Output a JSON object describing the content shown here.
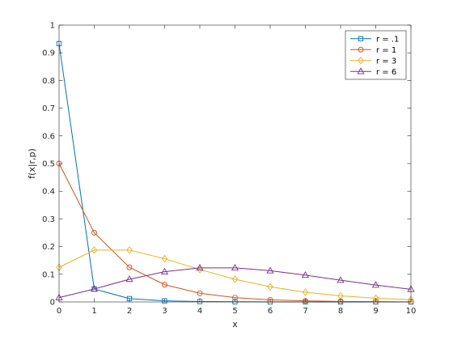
{
  "chart_data": {
    "type": "line",
    "xlabel": "x",
    "ylabel": "f(x|r,p)",
    "xlim": [
      0,
      10
    ],
    "ylim": [
      0,
      1
    ],
    "x_ticks": [
      "0",
      "1",
      "2",
      "3",
      "4",
      "5",
      "6",
      "7",
      "8",
      "9",
      "10"
    ],
    "y_ticks": [
      "0",
      "0.1",
      "0.2",
      "0.3",
      "0.4",
      "0.5",
      "0.6",
      "0.7",
      "0.8",
      "0.9",
      "1"
    ],
    "grid": false,
    "box": true,
    "legend_position": "top-right",
    "series": [
      {
        "name": "r = .1",
        "color": "#0072BD",
        "marker": "square",
        "x": [
          0,
          1,
          2,
          3,
          4,
          5,
          6,
          7,
          8,
          9,
          10
        ],
        "values": [
          0.933,
          0.047,
          0.012,
          0.004,
          0.0015,
          0.0006,
          0.0002,
          0.0001,
          4e-05,
          2e-05,
          1e-05
        ]
      },
      {
        "name": "r = 1",
        "color": "#D95319",
        "marker": "circle",
        "x": [
          0,
          1,
          2,
          3,
          4,
          5,
          6,
          7,
          8,
          9,
          10
        ],
        "values": [
          0.5,
          0.25,
          0.125,
          0.0625,
          0.0313,
          0.0156,
          0.0078,
          0.0039,
          0.002,
          0.001,
          0.0005
        ]
      },
      {
        "name": "r = 3",
        "color": "#EDB120",
        "marker": "diamond",
        "x": [
          0,
          1,
          2,
          3,
          4,
          5,
          6,
          7,
          8,
          9,
          10
        ],
        "values": [
          0.125,
          0.1875,
          0.1875,
          0.1563,
          0.1172,
          0.082,
          0.0547,
          0.0352,
          0.022,
          0.0134,
          0.0081
        ]
      },
      {
        "name": "r = 6",
        "color": "#7E2F8E",
        "marker": "triangle",
        "x": [
          0,
          1,
          2,
          3,
          4,
          5,
          6,
          7,
          8,
          9,
          10
        ],
        "values": [
          0.0156,
          0.0469,
          0.082,
          0.1094,
          0.123,
          0.123,
          0.1128,
          0.0967,
          0.0786,
          0.0611,
          0.0458
        ]
      }
    ]
  }
}
